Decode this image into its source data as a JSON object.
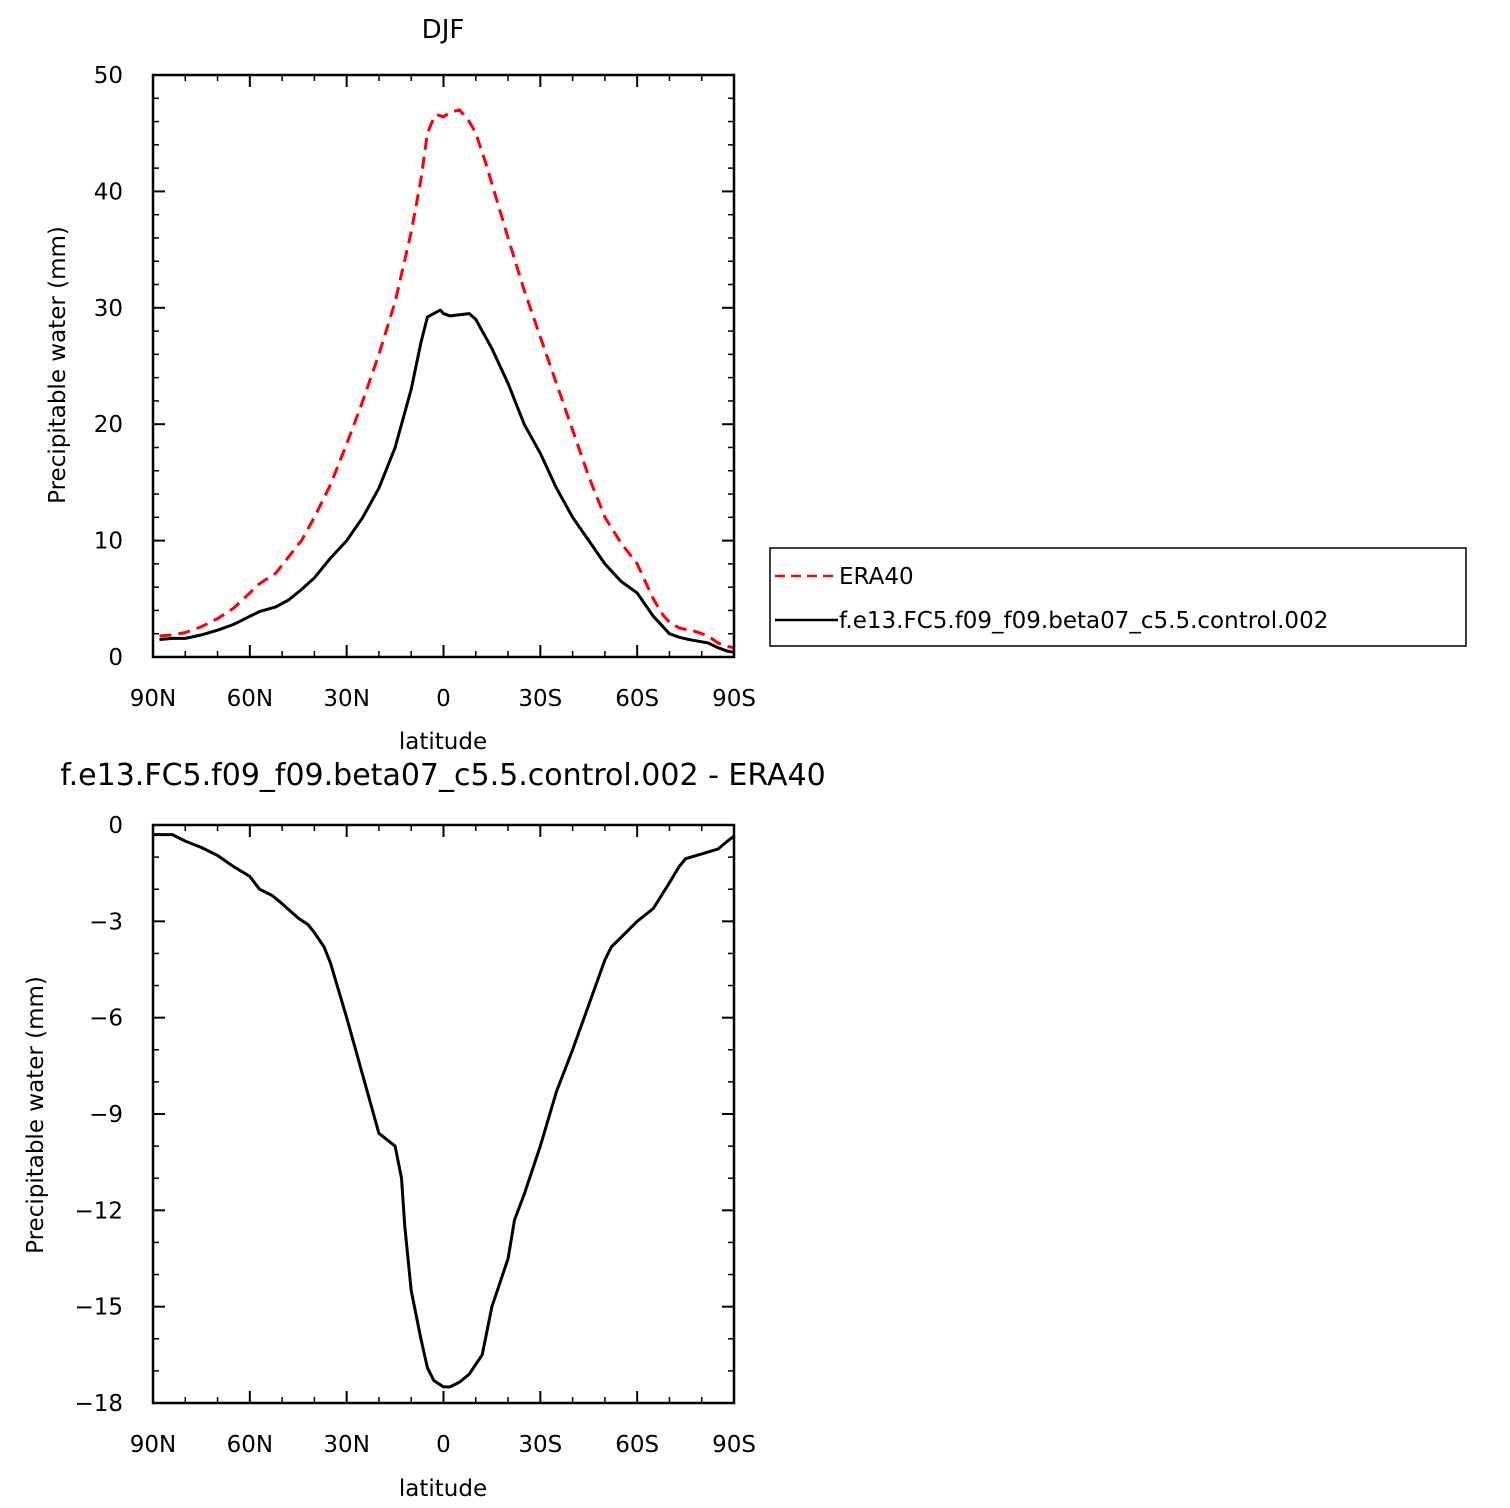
{
  "chart_data": [
    {
      "type": "line",
      "title": "DJF",
      "xlabel": "latitude",
      "ylabel": "Precipitable water (mm)",
      "xlim": [
        90,
        -90
      ],
      "ylim": [
        0,
        50
      ],
      "xticks": [
        90,
        60,
        30,
        0,
        -30,
        -60,
        -90
      ],
      "xtick_labels": [
        "90N",
        "60N",
        "30N",
        "0",
        "30S",
        "60S",
        "90S"
      ],
      "yticks": [
        0,
        10,
        20,
        30,
        40,
        50
      ],
      "ytick_labels": [
        "0",
        "10",
        "20",
        "30",
        "40",
        "50"
      ],
      "legend_position": "right",
      "series": [
        {
          "name": "ERA40",
          "color": "#ff0000",
          "dash": "dashed",
          "x": [
            88,
            84,
            80,
            75,
            70,
            65,
            60,
            57,
            52,
            48,
            44,
            40,
            35,
            30,
            25,
            20,
            15,
            10,
            7,
            5,
            3,
            2,
            0,
            -2,
            -5,
            -8,
            -10,
            -13,
            -17,
            -20,
            -25,
            -30,
            -35,
            -40,
            -45,
            -50,
            -55,
            -60,
            -65,
            -68,
            -70,
            -73,
            -76,
            -78,
            -82,
            -85,
            -88,
            -90
          ],
          "values": [
            1.8,
            1.9,
            2.1,
            2.6,
            3.3,
            4.2,
            5.5,
            6.3,
            7.2,
            8.6,
            10.0,
            12.0,
            14.8,
            18.3,
            22.0,
            26.0,
            30.5,
            36.5,
            41.0,
            45.0,
            46.3,
            46.6,
            46.4,
            46.8,
            47.0,
            46.0,
            45.0,
            42.5,
            38.8,
            36.0,
            31.5,
            27.5,
            23.5,
            19.5,
            15.5,
            12.0,
            9.8,
            8.0,
            5.0,
            3.6,
            3.0,
            2.5,
            2.3,
            2.2,
            1.8,
            1.2,
            0.9,
            0.8
          ]
        },
        {
          "name": "f.e13.FC5.f09_f09.beta07_c5.5.control.002",
          "color": "#000000",
          "dash": "solid",
          "x": [
            88,
            84,
            80,
            75,
            70,
            65,
            60,
            57,
            52,
            48,
            44,
            40,
            35,
            30,
            25,
            20,
            15,
            10,
            7,
            5,
            3,
            1,
            0,
            -2,
            -5,
            -8,
            -10,
            -15,
            -20,
            -25,
            -30,
            -35,
            -40,
            -45,
            -50,
            -55,
            -60,
            -65,
            -68,
            -70,
            -73,
            -76,
            -78,
            -82,
            -85,
            -88,
            -90
          ],
          "values": [
            1.5,
            1.6,
            1.6,
            1.9,
            2.3,
            2.8,
            3.5,
            3.9,
            4.3,
            4.9,
            5.8,
            6.8,
            8.5,
            10.0,
            12.0,
            14.5,
            18.0,
            23.0,
            27.0,
            29.2,
            29.5,
            29.8,
            29.5,
            29.3,
            29.4,
            29.5,
            29.0,
            26.5,
            23.5,
            20.0,
            17.5,
            14.5,
            12.0,
            10.0,
            8.0,
            6.5,
            5.5,
            3.5,
            2.6,
            2.0,
            1.7,
            1.5,
            1.4,
            1.2,
            0.8,
            0.5,
            0.4
          ]
        }
      ]
    },
    {
      "type": "line",
      "title": "f.e13.FC5.f09_f09.beta07_c5.5.control.002 - ERA40",
      "xlabel": "latitude",
      "ylabel": "Precipitable water (mm)",
      "xlim": [
        90,
        -90
      ],
      "ylim": [
        -18,
        0
      ],
      "xticks": [
        90,
        60,
        30,
        0,
        -30,
        -60,
        -90
      ],
      "xtick_labels": [
        "90N",
        "60N",
        "30N",
        "0",
        "30S",
        "60S",
        "90S"
      ],
      "yticks": [
        0,
        -3,
        -6,
        -9,
        -12,
        -15,
        -18
      ],
      "ytick_labels": [
        "0",
        "−3",
        "−6",
        "−9",
        "−12",
        "−15",
        "−18"
      ],
      "series": [
        {
          "color": "#000000",
          "dash": "solid",
          "x": [
            90,
            86,
            84,
            80,
            75,
            70,
            65,
            60,
            57,
            53,
            50,
            45,
            42,
            40,
            37,
            35,
            30,
            25,
            20,
            15,
            13,
            12,
            10,
            7,
            5,
            3,
            0,
            -2,
            -5,
            -8,
            -12,
            -15,
            -20,
            -22,
            -25,
            -30,
            -35,
            -40,
            -45,
            -50,
            -52,
            -55,
            -60,
            -65,
            -70,
            -73,
            -75,
            -80,
            -85,
            -88,
            -90
          ],
          "values": [
            -0.3,
            -0.3,
            -0.3,
            -0.5,
            -0.7,
            -0.95,
            -1.3,
            -1.6,
            -2.0,
            -2.2,
            -2.45,
            -2.9,
            -3.1,
            -3.35,
            -3.8,
            -4.3,
            -6.0,
            -7.8,
            -9.6,
            -10.0,
            -11.0,
            -12.5,
            -14.5,
            -16.0,
            -16.9,
            -17.3,
            -17.5,
            -17.5,
            -17.35,
            -17.1,
            -16.5,
            -15.0,
            -13.5,
            -12.3,
            -11.5,
            -10.0,
            -8.3,
            -7.0,
            -5.6,
            -4.2,
            -3.8,
            -3.5,
            -3.0,
            -2.6,
            -1.8,
            -1.3,
            -1.05,
            -0.9,
            -0.75,
            -0.5,
            -0.35
          ]
        }
      ]
    }
  ]
}
